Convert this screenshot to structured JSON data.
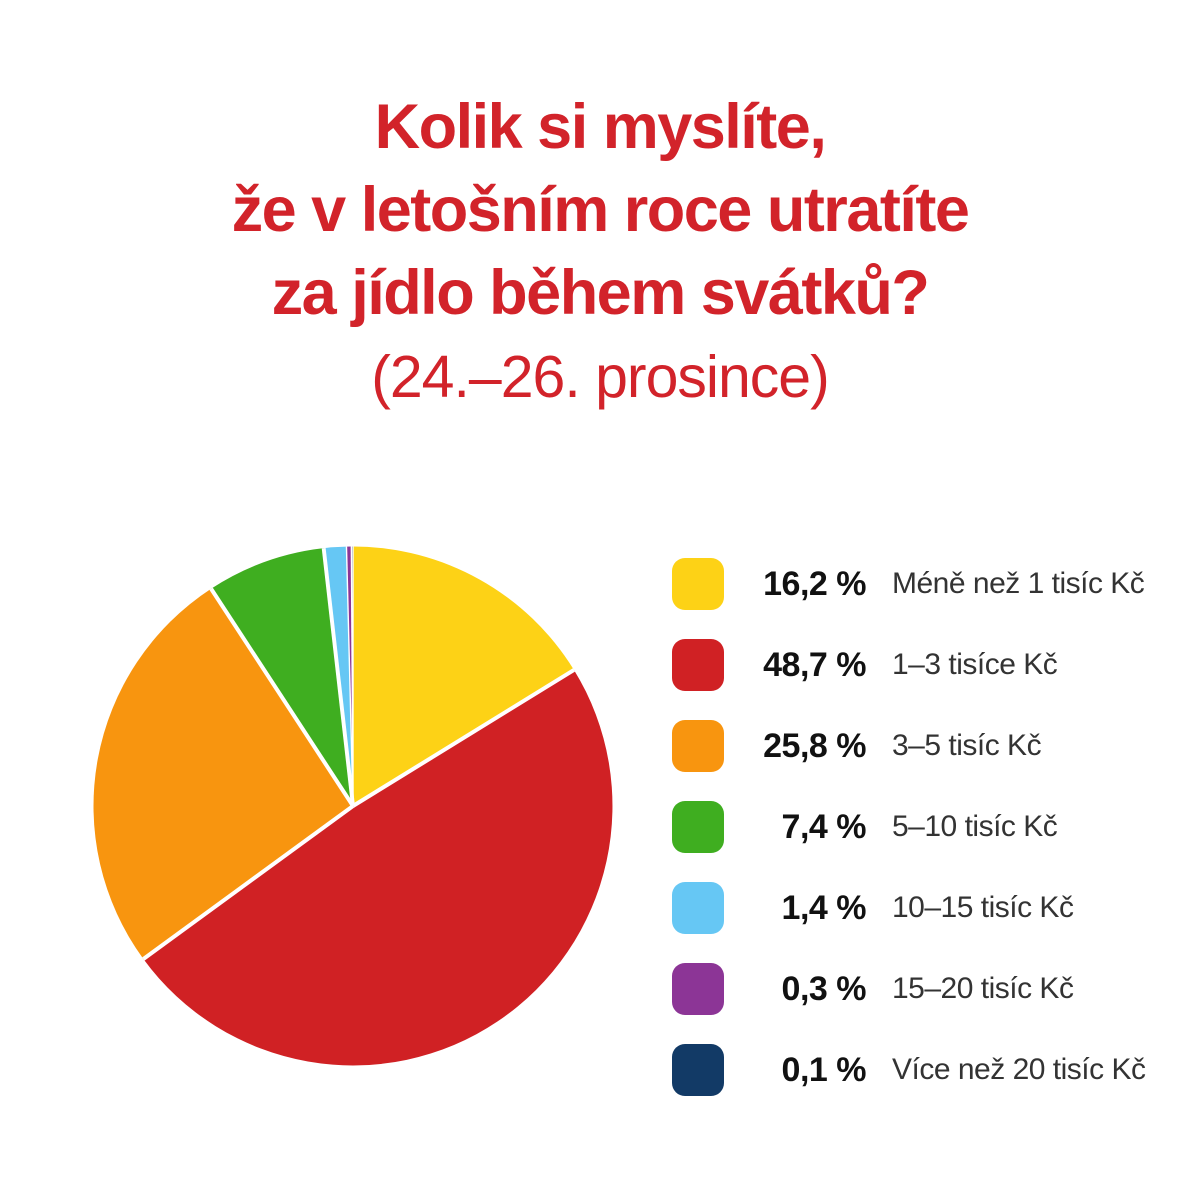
{
  "title": {
    "line1": "Kolik si myslíte,",
    "line2": "že v letošním roce utratíte",
    "line3": "za jídlo během svátků?",
    "subtitle": "(24.–26. prosince)",
    "color": "#d2232a"
  },
  "chart_data": {
    "type": "pie",
    "title": "Kolik si myslíte, že v letošním roce utratíte za jídlo během svátků? (24.–26. prosince)",
    "unit": "%",
    "total": 100,
    "start_angle_deg": 0,
    "start_position": "12-oclock",
    "direction": "clockwise",
    "legend_position": "right",
    "background_color": "#ffffff",
    "slices": [
      {
        "label": "Méně než 1 tisíc Kč",
        "value": 16.2,
        "percent_label": "16,2 %",
        "color": "#fdd216"
      },
      {
        "label": "1–3 tisíce Kč",
        "value": 48.7,
        "percent_label": "48,7 %",
        "color": "#d02124"
      },
      {
        "label": "3–5 tisíc Kč",
        "value": 25.8,
        "percent_label": "25,8 %",
        "color": "#f8950f"
      },
      {
        "label": "5–10 tisíc Kč",
        "value": 7.4,
        "percent_label": "7,4 %",
        "color": "#3fae20"
      },
      {
        "label": "10–15 tisíc Kč",
        "value": 1.4,
        "percent_label": "1,4 %",
        "color": "#66c7f4"
      },
      {
        "label": "15–20 tisíc Kč",
        "value": 0.3,
        "percent_label": "0,3 %",
        "color": "#8c3596"
      },
      {
        "label": "Více než 20 tisíc Kč",
        "value": 0.1,
        "percent_label": "0,1 %",
        "color": "#123a66"
      }
    ]
  }
}
